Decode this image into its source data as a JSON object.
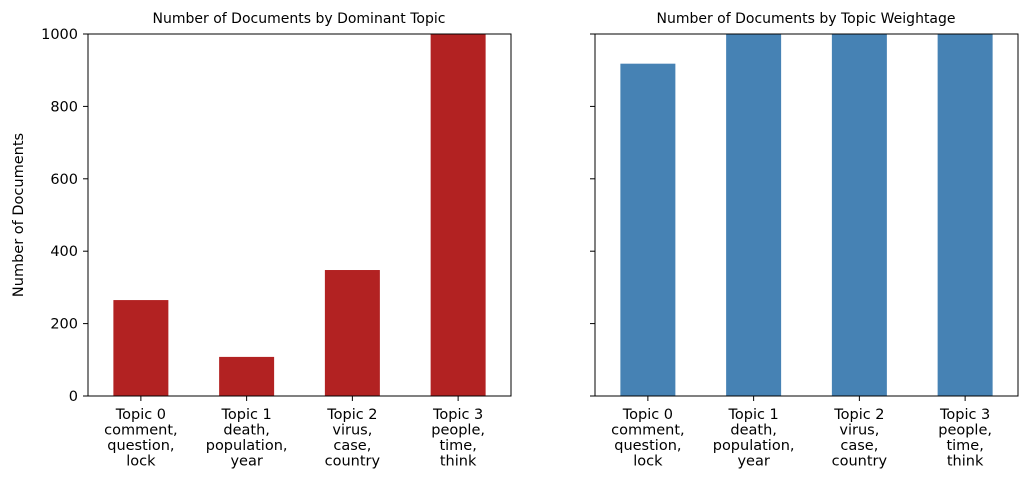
{
  "chart_data": [
    {
      "type": "bar",
      "title": "Number of Documents by Dominant Topic",
      "ylabel": "Number of Documents",
      "xlabel": "",
      "categories": [
        [
          "Topic 0",
          "comment,",
          "question,",
          "lock"
        ],
        [
          "Topic 1",
          "death,",
          "population,",
          "year"
        ],
        [
          "Topic 2",
          "virus,",
          "case,",
          "country"
        ],
        [
          "Topic 3",
          "people,",
          "time,",
          "think"
        ]
      ],
      "values": [
        265,
        108,
        348,
        1000
      ],
      "ylim": [
        0,
        1000
      ],
      "yticks": [
        0,
        200,
        400,
        600,
        800,
        1000
      ],
      "show_ytick_labels": true,
      "color": "#b22222",
      "grid": false
    },
    {
      "type": "bar",
      "title": "Number of Documents by Topic Weightage",
      "ylabel": "",
      "xlabel": "",
      "categories": [
        [
          "Topic 0",
          "comment,",
          "question,",
          "lock"
        ],
        [
          "Topic 1",
          "death,",
          "population,",
          "year"
        ],
        [
          "Topic 2",
          "virus,",
          "case,",
          "country"
        ],
        [
          "Topic 3",
          "people,",
          "time,",
          "think"
        ]
      ],
      "values": [
        918,
        1000,
        1000,
        1000
      ],
      "ylim": [
        0,
        1000
      ],
      "yticks": [
        0,
        200,
        400,
        600,
        800,
        1000
      ],
      "show_ytick_labels": false,
      "color": "#4682b4",
      "grid": false
    }
  ]
}
